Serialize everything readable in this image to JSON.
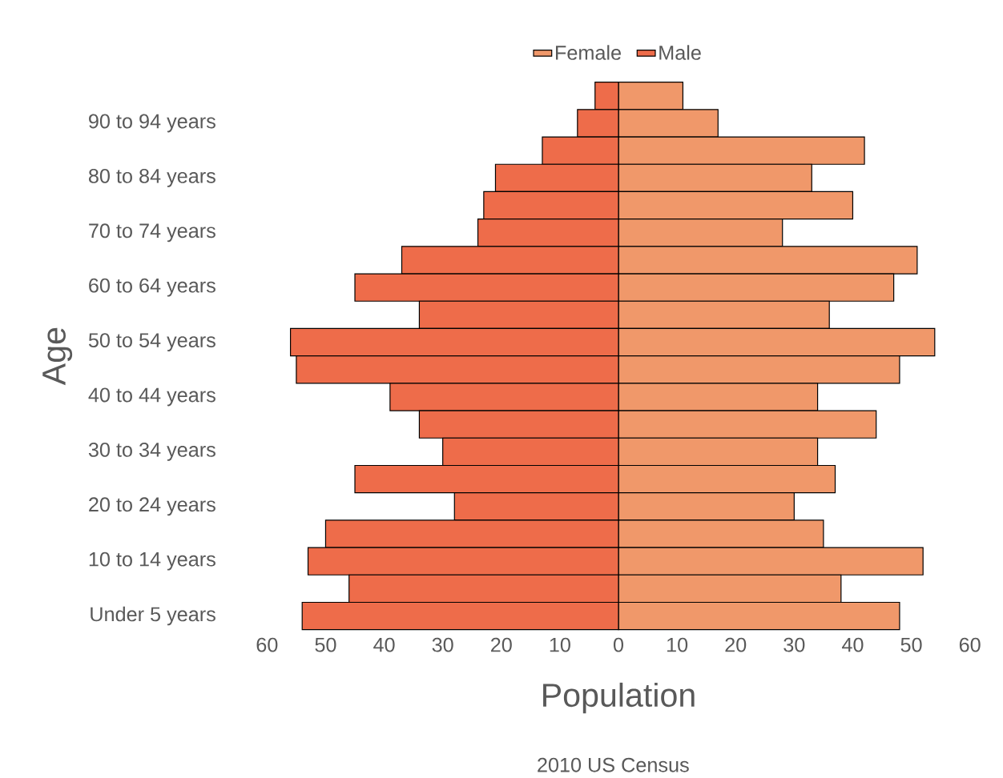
{
  "chart_data": {
    "type": "bar",
    "orientation": "horizontal",
    "stacked": true,
    "categories": [
      null,
      "90 to 94 years",
      null,
      "80 to 84 years",
      null,
      "70 to 74 years",
      null,
      "60 to 64 years",
      null,
      "50 to 54 years",
      null,
      "40 to 44 years",
      null,
      "30 to 34 years",
      null,
      "20 to 24 years",
      null,
      "10 to 14 years",
      null,
      "Under 5 years"
    ],
    "series": [
      {
        "name": "Male",
        "color": "#ee6c4a",
        "values": [
          -4,
          -7,
          -13,
          -21,
          -23,
          -24,
          -37,
          -45,
          -34,
          -56,
          -55,
          -39,
          -34,
          -30,
          -45,
          -28,
          -50,
          -53,
          -46,
          -54
        ]
      },
      {
        "name": "Female",
        "color": "#f0986a",
        "values": [
          11,
          17,
          42,
          33,
          40,
          28,
          51,
          47,
          36,
          54,
          48,
          34,
          44,
          34,
          37,
          30,
          35,
          52,
          38,
          48
        ]
      }
    ],
    "xlim": [
      -60,
      60
    ],
    "xticks": [
      {
        "value": -60,
        "label": "60"
      },
      {
        "value": -50,
        "label": "50"
      },
      {
        "value": -40,
        "label": "40"
      },
      {
        "value": -30,
        "label": "30"
      },
      {
        "value": -20,
        "label": "20"
      },
      {
        "value": -10,
        "label": "10"
      },
      0,
      10,
      20,
      30,
      40,
      50,
      60
    ],
    "xlabel": "Population",
    "ylabel": "Age",
    "annotations": [
      "2010 US Census"
    ],
    "legend": "top"
  }
}
